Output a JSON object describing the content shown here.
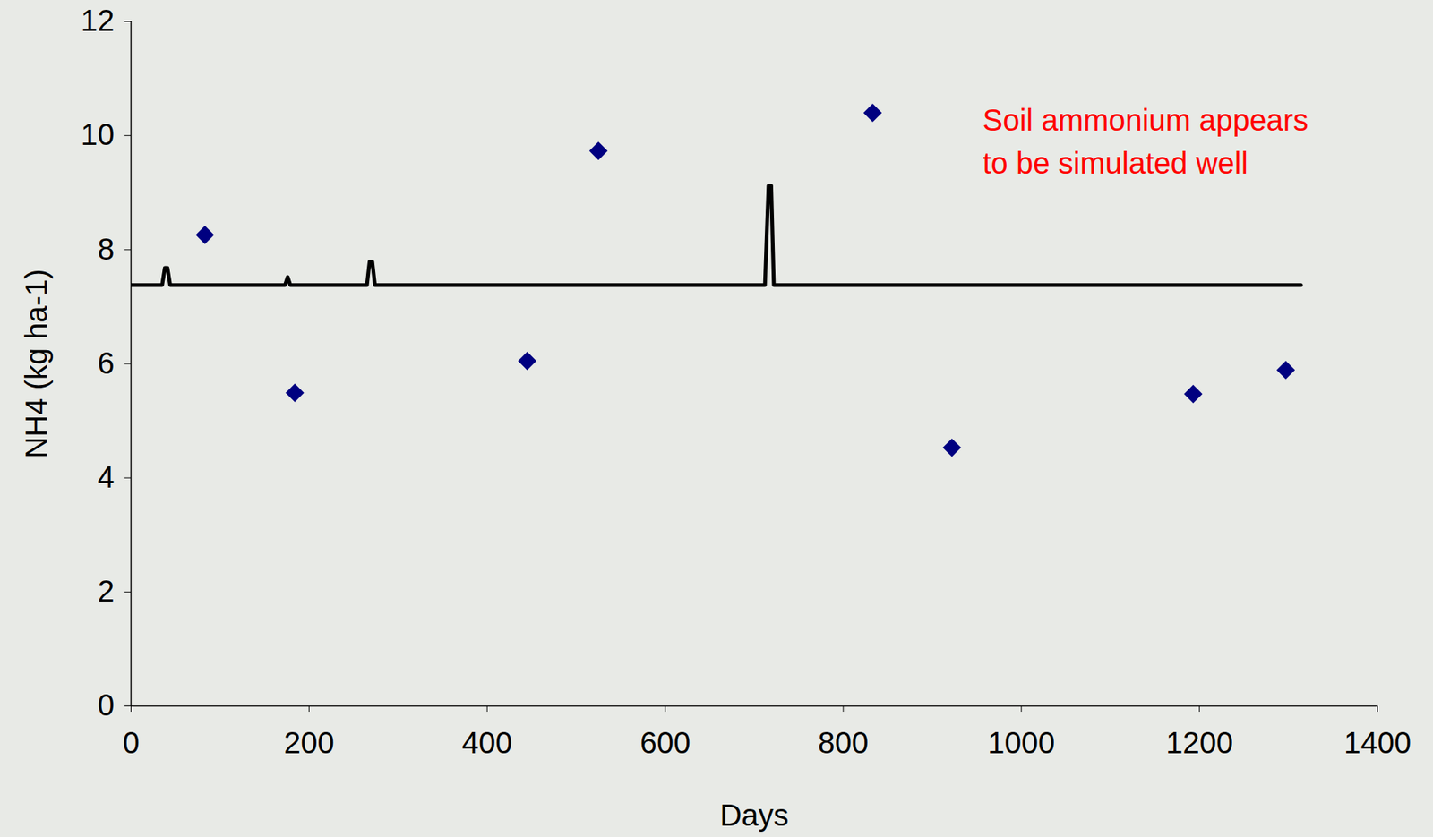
{
  "chart_data": {
    "type": "line",
    "x_label": "Days",
    "y_label": "NH4 (kg ha-1)",
    "xlim": [
      0,
      1400
    ],
    "xticks": [
      0,
      200,
      400,
      600,
      800,
      1000,
      1200,
      1400
    ],
    "ylim": [
      0,
      12
    ],
    "yticks": [
      0,
      2,
      4,
      6,
      8,
      10,
      12
    ],
    "grid": false,
    "annotation": {
      "text": "Soil ammonium appears\nto be simulated well",
      "color": "#ff0000"
    },
    "series": [
      {
        "type": "line",
        "color": "#000000",
        "line_style": "solid",
        "x": [
          0,
          35,
          38,
          41,
          44,
          173,
          176,
          179,
          265,
          268,
          271,
          274,
          712,
          716,
          719,
          722,
          726,
          1314
        ],
        "values": [
          7.38,
          7.38,
          7.68,
          7.68,
          7.38,
          7.38,
          7.52,
          7.38,
          7.38,
          7.79,
          7.79,
          7.38,
          7.38,
          9.12,
          9.12,
          7.38,
          7.38,
          7.38
        ]
      },
      {
        "type": "scatter",
        "color": "#000080",
        "marker": "diamond",
        "x": [
          83,
          184,
          445,
          525,
          833,
          922,
          1193,
          1297
        ],
        "values": [
          8.26,
          5.49,
          6.05,
          9.73,
          10.4,
          4.53,
          5.47,
          5.89
        ]
      }
    ]
  }
}
